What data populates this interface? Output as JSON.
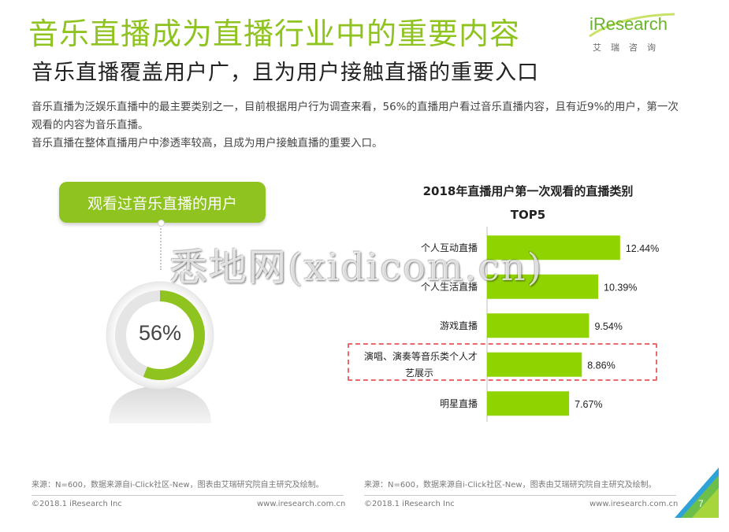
{
  "header": {
    "title": "音乐直播成为直播行业中的重要内容",
    "subtitle": "音乐直播覆盖用户广，且为用户接触直播的重要入口"
  },
  "logo": {
    "wordmark": "iResearch",
    "cn": "艾瑞咨询"
  },
  "body": {
    "para1": "音乐直播为泛娱乐直播中的最主要类别之一，目前根据用户行为调查来看，56%的直播用户看过音乐直播内容，且有近9%的用户，第一次观看的内容为音乐直播。",
    "para2": "音乐直播在整体直播用户中渗透率较高，且成为用户接触直播的重要入口。"
  },
  "left_panel": {
    "pill_label": "观看过音乐直播的用户",
    "percent_label": "56%",
    "percent_value": 0.56
  },
  "chart_data": {
    "type": "bar",
    "orientation": "horizontal",
    "title_line1": "2018年直播用户第一次观看的直播类别",
    "title_line2": "TOP5",
    "categories": [
      "个人互动直播",
      "个人生活直播",
      "游戏直播",
      "演唱、演奏等音乐类个人才艺展示",
      "明星直播"
    ],
    "category_lines": [
      [
        "个人互动直播"
      ],
      [
        "个人生活直播"
      ],
      [
        "游戏直播"
      ],
      [
        "演唱、演奏等音乐类个人才",
        "艺展示"
      ],
      [
        "明星直播"
      ]
    ],
    "values": [
      12.44,
      10.39,
      9.54,
      8.86,
      7.67
    ],
    "value_labels": [
      "12.44%",
      "10.39%",
      "9.54%",
      "8.86%",
      "7.67%"
    ],
    "highlight_index": 3,
    "bar_color": "#8fd400",
    "xlim": [
      0,
      14
    ]
  },
  "watermark": "悉地网(xidicom.cn)",
  "footer": {
    "left_source": "来源：N=600，数据来源自i-Click社区-New，图表由艾瑞研究院自主研究及绘制。",
    "right_source": "来源：N=600，数据来源自i-Click社区-New，图表由艾瑞研究院自主研究及绘制。",
    "left_copy": "©2018.1 iResearch Inc",
    "left_url": "www.iresearch.com.cn",
    "right_copy": "©2018.1 iResearch Inc",
    "right_url": "www.iresearch.com.cn",
    "page_number": "7"
  },
  "colors": {
    "accent": "#8fc31f",
    "highlight_border": "#e86a6a"
  }
}
